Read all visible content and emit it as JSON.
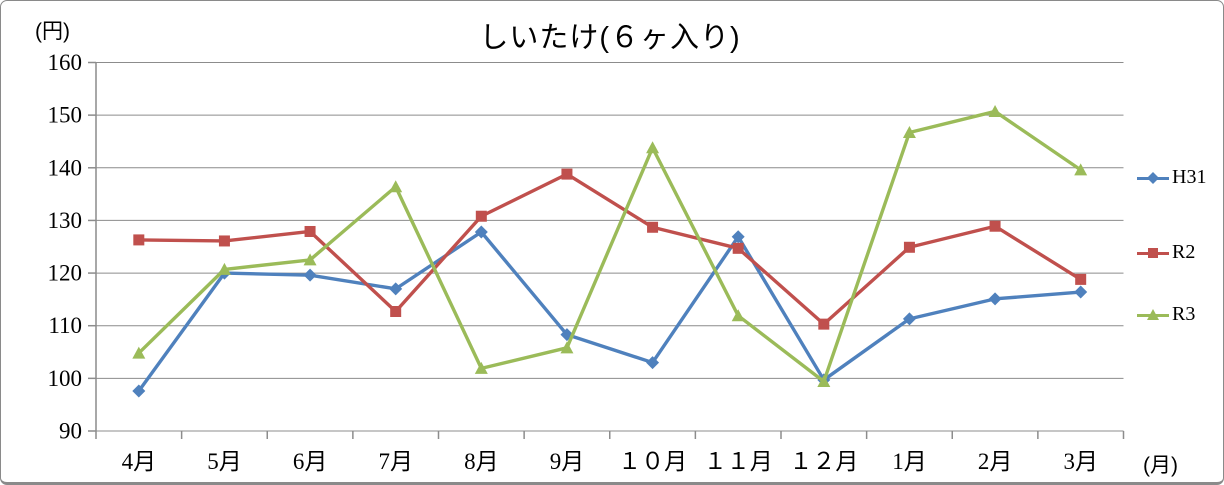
{
  "chart_data": {
    "type": "line",
    "title": "しいたけ(６ヶ入り)",
    "y_unit_label": "(円)",
    "x_unit_label": "(月)",
    "xlabel": "",
    "ylabel": "",
    "ylim": [
      90,
      160
    ],
    "ytick_step": 10,
    "yticks": [
      90,
      100,
      110,
      120,
      130,
      140,
      150,
      160
    ],
    "grid": true,
    "legend_position": "right",
    "categories": [
      "4月",
      "5月",
      "6月",
      "7月",
      "8月",
      "9月",
      "１０月",
      "１１月",
      "１２月",
      "1月",
      "2月",
      "3月"
    ],
    "series": [
      {
        "name": "H31",
        "color": "#4F81BD",
        "marker": "diamond",
        "values": [
          97.6,
          120.0,
          119.6,
          117.0,
          127.8,
          108.3,
          103.0,
          126.9,
          99.7,
          111.3,
          115.1,
          116.4
        ]
      },
      {
        "name": "R2",
        "color": "#C0504D",
        "marker": "square",
        "values": [
          126.3,
          126.1,
          127.9,
          112.7,
          130.8,
          138.8,
          128.7,
          124.7,
          110.3,
          124.9,
          128.9,
          118.8
        ]
      },
      {
        "name": "R3",
        "color": "#9BBB59",
        "marker": "triangle",
        "values": [
          104.8,
          120.7,
          122.5,
          136.4,
          101.9,
          105.8,
          143.8,
          111.9,
          99.4,
          146.7,
          150.7,
          139.6
        ]
      }
    ],
    "axis_color": "#8C8C8C",
    "gridline_color": "#8C8C8C"
  }
}
